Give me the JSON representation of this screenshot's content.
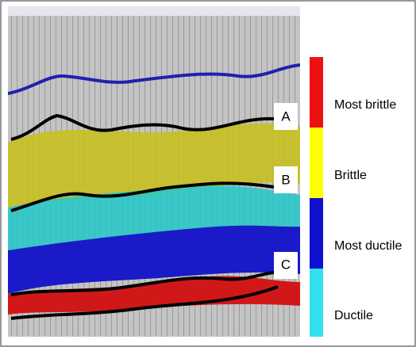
{
  "labels": [
    "A",
    "B",
    "C"
  ],
  "legend": [
    "Most brittle",
    "Brittle",
    "Most ductile",
    "Ductile"
  ]
}
